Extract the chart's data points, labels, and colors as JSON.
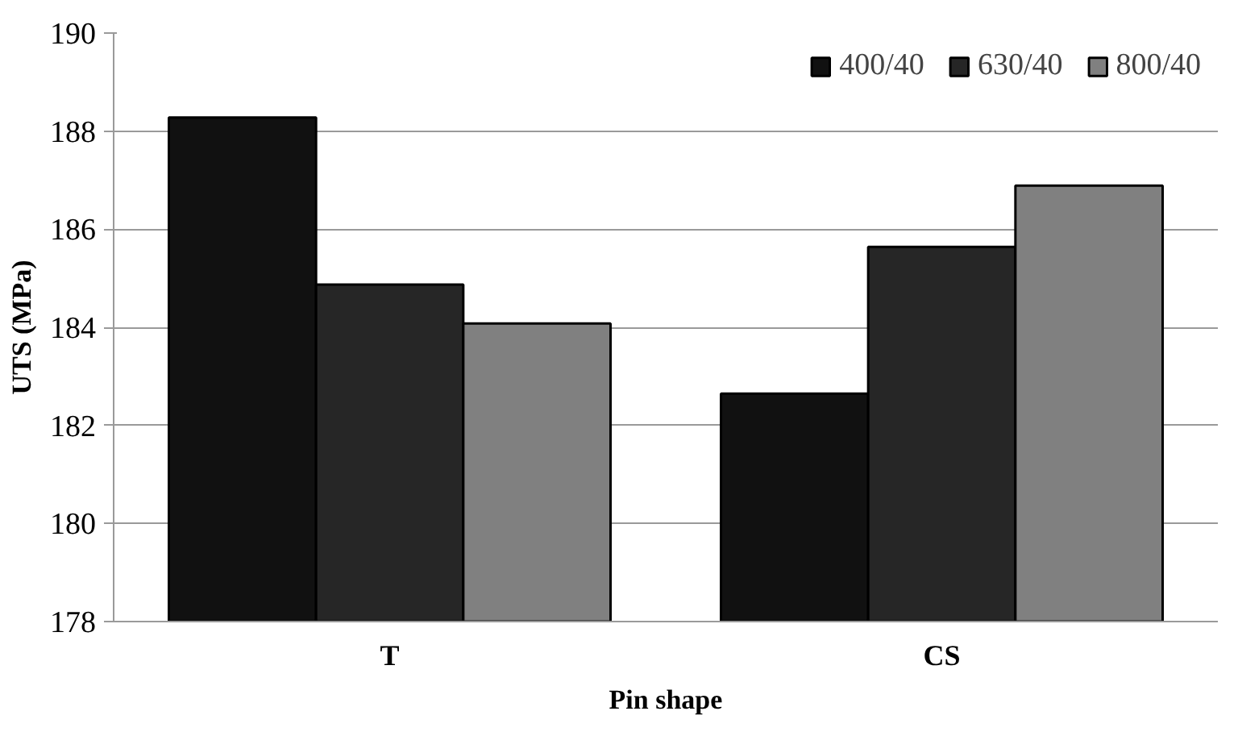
{
  "chart_data": {
    "type": "bar",
    "xlabel": "Pin shape",
    "ylabel": "UTS (MPa)",
    "categories": [
      "T",
      "CS"
    ],
    "series": [
      {
        "name": "400/40",
        "color": "#111111",
        "values": [
          188.28,
          182.65
        ]
      },
      {
        "name": "630/40",
        "color": "#262626",
        "values": [
          184.87,
          185.64
        ]
      },
      {
        "name": "800/40",
        "color": "#808080",
        "values": [
          184.08,
          186.89
        ]
      }
    ],
    "ylim": [
      178,
      190
    ],
    "yticks": [
      178,
      180,
      182,
      184,
      186,
      188,
      190
    ],
    "grid": "y",
    "legend": "top right"
  }
}
